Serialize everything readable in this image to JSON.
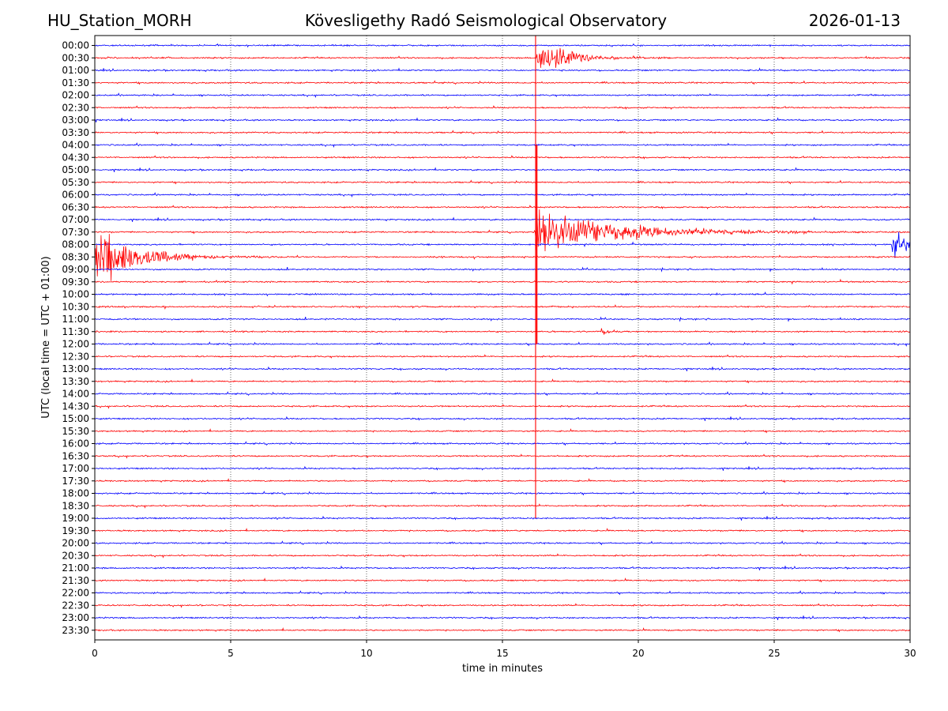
{
  "header": {
    "station": "HU_Station_MORH",
    "observatory": "Kövesligethy Radó Seismological Observatory",
    "date": "2026-01-13"
  },
  "chart_data": {
    "type": "line",
    "title": "Kövesligethy Radó Seismological Observatory",
    "xlabel": "time in minutes",
    "ylabel": "UTC (local time = UTC + 01:00)",
    "xlim": [
      0,
      30
    ],
    "xticks": [
      0,
      5,
      10,
      15,
      20,
      25,
      30
    ],
    "grid": "vertical dotted at x ticks",
    "row_labels": [
      "00:00",
      "00:30",
      "01:00",
      "01:30",
      "02:00",
      "02:30",
      "03:00",
      "03:30",
      "04:00",
      "04:30",
      "05:00",
      "05:30",
      "06:00",
      "06:30",
      "07:00",
      "07:30",
      "08:00",
      "08:30",
      "09:00",
      "09:30",
      "10:00",
      "10:30",
      "11:00",
      "11:30",
      "12:00",
      "12:30",
      "13:00",
      "13:30",
      "14:00",
      "14:30",
      "15:00",
      "15:30",
      "16:00",
      "16:30",
      "17:00",
      "17:30",
      "18:00",
      "18:30",
      "19:00",
      "19:30",
      "20:00",
      "20:30",
      "21:00",
      "21:30",
      "22:00",
      "22:30",
      "23:00",
      "23:30"
    ],
    "trace_colors": [
      "#0000ff",
      "#ff0000"
    ],
    "events": [
      {
        "row": "00:30",
        "start_min": 16.25,
        "decay_min": 1.2,
        "amplitude_rows": 0.9
      },
      {
        "row": "07:30",
        "start_min": 16.2,
        "decay_min": 3.0,
        "amplitude_rows": 1.3
      },
      {
        "row": "08:30",
        "start_min": 0.0,
        "decay_min": 1.5,
        "amplitude_rows": 1.6
      },
      {
        "row": "08:00",
        "start_min": 29.3,
        "decay_min": 0.8,
        "amplitude_rows": 0.8
      },
      {
        "row": "11:30",
        "start_min": 18.6,
        "decay_min": 0.3,
        "amplitude_rows": 0.2
      }
    ]
  }
}
